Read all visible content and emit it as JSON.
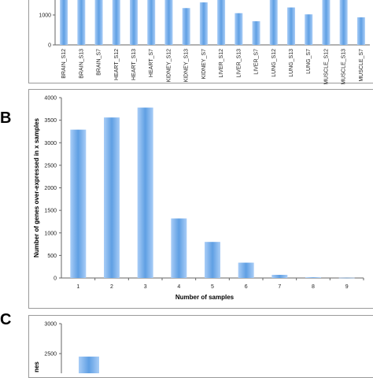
{
  "panels": {
    "b_letter": "B",
    "c_letter": "C"
  },
  "chart_data": [
    {
      "panel": "A",
      "type": "bar",
      "categories": [
        "BRAIN_S12",
        "BRAIN_S13",
        "BRAIN_S7",
        "HEART_S12",
        "HEART_S13",
        "HEART_S7",
        "KIDNEY_S12",
        "KIDNEY_S13",
        "KIDNEY_S7",
        "LIVER_S12",
        "LIVER_S13",
        "LIVER_S7",
        "LUNG_S12",
        "LUNG_S13",
        "LUNG_S7",
        "MUSCLE_S12",
        "MUSCLE_S13",
        "MUSCLE_S7"
      ],
      "values": [
        1600,
        1580,
        1570,
        1580,
        1590,
        1570,
        1580,
        1230,
        1420,
        1600,
        1060,
        790,
        1600,
        1250,
        1020,
        1590,
        1580,
        920
      ],
      "yticks": [
        "0",
        "1000"
      ],
      "ylim": [
        0,
        1640
      ],
      "color": "#4a8fd8"
    },
    {
      "panel": "B",
      "type": "bar",
      "categories": [
        "1",
        "2",
        "3",
        "4",
        "5",
        "6",
        "7",
        "8",
        "9"
      ],
      "values": [
        3290,
        3560,
        3780,
        1320,
        800,
        340,
        70,
        15,
        5
      ],
      "yticks": [
        "0",
        "500",
        "1000",
        "1500",
        "2000",
        "2500",
        "3000",
        "3500",
        "4000"
      ],
      "ylim": [
        0,
        4000
      ],
      "xlabel": "Number of samples",
      "ylabel": "Number of genes over-expressed in x samples",
      "color": "#4a8fd8"
    },
    {
      "panel": "C",
      "type": "bar",
      "categories": [
        "1"
      ],
      "values": [
        2450
      ],
      "yticks": [
        "2500",
        "3000"
      ],
      "ylim": [
        2200,
        3000
      ],
      "ylabel_fragment": "nes",
      "color": "#4a8fd8"
    }
  ]
}
